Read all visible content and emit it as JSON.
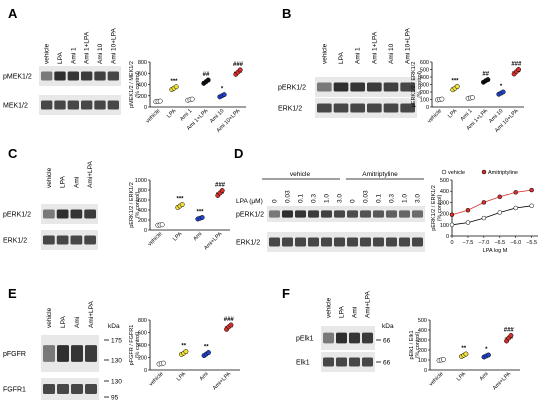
{
  "figure": {
    "panels": [
      {
        "id": "A",
        "lanes": [
          "vehicle",
          "LPA",
          "Ami 1",
          "Ami 1+LPA",
          "Ami 10",
          "Ami 10+LPA"
        ],
        "blots": [
          {
            "label": "pMEK1/2"
          },
          {
            "label": "MEK1/2"
          }
        ],
        "kda": []
      },
      {
        "id": "B",
        "lanes": [
          "vehicle",
          "LPA",
          "Ami 1",
          "Ami 1+LPA",
          "Ami 10",
          "Ami 10+LPA"
        ],
        "blots": [
          {
            "label": "pERK1/2"
          },
          {
            "label": "ERK1/2"
          }
        ],
        "kda": []
      },
      {
        "id": "C",
        "lanes": [
          "vehicle",
          "LPA",
          "Ami",
          "Ami+LPA"
        ],
        "blots": [
          {
            "label": "pERK1/2"
          },
          {
            "label": "ERK1/2"
          }
        ],
        "kda": []
      },
      {
        "id": "D",
        "groups": [
          "vehicle",
          "Amitriptyline"
        ],
        "lpa_label": "LPA (μM)",
        "concentrations": [
          "0",
          "0.03",
          "0.1",
          "0.3",
          "1.0",
          "3.0",
          "0",
          "0.03",
          "0.1",
          "0.3",
          "1.0",
          "3.0"
        ],
        "blots": [
          {
            "label": "pERK1/2"
          },
          {
            "label": "ERK1/2"
          }
        ],
        "kda": []
      },
      {
        "id": "E",
        "lanes": [
          "vehicle",
          "LPA",
          "Ami",
          "Ami+LPA"
        ],
        "blots": [
          {
            "label": "pFGFR"
          },
          {
            "label": "FGFR1"
          }
        ],
        "kda_title": "kDa",
        "kda": [
          "175",
          "130",
          "130",
          "95"
        ]
      },
      {
        "id": "F",
        "lanes": [
          "vehicle",
          "LPA",
          "Ami",
          "Ami+LPA"
        ],
        "blots": [
          {
            "label": "pElk1"
          },
          {
            "label": "Elk1"
          }
        ],
        "kda_title": "kDa",
        "kda": [
          "66",
          "66"
        ]
      }
    ]
  },
  "chart_data": [
    {
      "panel": "A",
      "type": "scatter",
      "ylabel": "pMEK1/2 / MEK1/2\n(% control)",
      "ylim": [
        0,
        800
      ],
      "yticks": [
        0,
        200,
        400,
        600,
        800
      ],
      "categories": [
        "vehicle",
        "LPA",
        "Ami 1",
        "Ami 1+LPA",
        "Ami 10",
        "Ami 10+LPA"
      ],
      "groups": [
        {
          "label": "vehicle",
          "color": "#ffffff",
          "values": [
            95,
            100,
            105
          ],
          "mean": 100,
          "sig": ""
        },
        {
          "label": "LPA",
          "color": "#f2e23c",
          "values": [
            310,
            335,
            360
          ],
          "mean": 335,
          "sig": "***"
        },
        {
          "label": "Ami 1",
          "color": "#ffffff",
          "values": [
            120,
            130,
            140
          ],
          "mean": 130,
          "sig": ""
        },
        {
          "label": "Ami 1+LPA",
          "color": "#111111",
          "values": [
            420,
            450,
            480
          ],
          "mean": 450,
          "sig": "##"
        },
        {
          "label": "Ami 10",
          "color": "#2145c9",
          "values": [
            180,
            200,
            220
          ],
          "mean": 200,
          "sig": "*"
        },
        {
          "label": "Ami 10+LPA",
          "color": "#d7302a",
          "values": [
            580,
            620,
            660
          ],
          "mean": 620,
          "sig": "###"
        }
      ]
    },
    {
      "panel": "B",
      "type": "scatter",
      "ylabel": "pERK1/2 / ERK1/2\n(% control)",
      "ylim": [
        0,
        600
      ],
      "yticks": [
        0,
        100,
        200,
        300,
        400,
        500,
        600
      ],
      "categories": [
        "vehicle",
        "LPA",
        "Ami 1",
        "Ami 1+LPA",
        "Ami 10",
        "Ami 10+LPA"
      ],
      "groups": [
        {
          "label": "vehicle",
          "color": "#ffffff",
          "values": [
            95,
            100,
            105
          ],
          "mean": 100,
          "sig": ""
        },
        {
          "label": "LPA",
          "color": "#f2e23c",
          "values": [
            230,
            250,
            275
          ],
          "mean": 252,
          "sig": "***"
        },
        {
          "label": "Ami 1",
          "color": "#ffffff",
          "values": [
            115,
            120,
            125
          ],
          "mean": 120,
          "sig": ""
        },
        {
          "label": "Ami 1+LPA",
          "color": "#111111",
          "values": [
            330,
            350,
            365
          ],
          "mean": 348,
          "sig": "##"
        },
        {
          "label": "Ami 10",
          "color": "#2145c9",
          "values": [
            170,
            185,
            200
          ],
          "mean": 185,
          "sig": "*"
        },
        {
          "label": "Ami 10+LPA",
          "color": "#d7302a",
          "values": [
            440,
            470,
            500
          ],
          "mean": 470,
          "sig": "###"
        }
      ]
    },
    {
      "panel": "C",
      "type": "scatter",
      "ylabel": "pERK1/2 / ERK1/2\n(% control)",
      "ylim": [
        0,
        1000
      ],
      "yticks": [
        0,
        200,
        400,
        600,
        800,
        1000
      ],
      "categories": [
        "vehicle",
        "LPA",
        "Ami",
        "Ami+LPA"
      ],
      "groups": [
        {
          "label": "vehicle",
          "color": "#ffffff",
          "values": [
            95,
            100,
            105
          ],
          "mean": 100,
          "sig": ""
        },
        {
          "label": "LPA",
          "color": "#f2e23c",
          "values": [
            450,
            480,
            510
          ],
          "mean": 480,
          "sig": "***"
        },
        {
          "label": "Ami",
          "color": "#2145c9",
          "values": [
            220,
            235,
            250
          ],
          "mean": 235,
          "sig": "***"
        },
        {
          "label": "Ami+LPA",
          "color": "#d7302a",
          "values": [
            690,
            740,
            790
          ],
          "mean": 740,
          "sig": "###"
        }
      ]
    },
    {
      "panel": "D",
      "type": "line",
      "xlabel": "LPA log M",
      "ylabel": "pERK1/2 / ERK1/2\n(% control)",
      "ylim": [
        0,
        500
      ],
      "yticks": [
        0,
        100,
        200,
        300,
        400,
        500
      ],
      "xlim": [
        -8,
        -5.3
      ],
      "xticks": [
        "0",
        "−7.5",
        "−7.0",
        "−6.5",
        "−6.0",
        "−5.5"
      ],
      "series": [
        {
          "name": "vehicle",
          "color": "#ffffff",
          "x": [
            -8.0,
            -7.5,
            -7.0,
            -6.5,
            -6.0,
            -5.5
          ],
          "y": [
            100,
            120,
            160,
            210,
            250,
            270
          ]
        },
        {
          "name": "Amitriptyline",
          "color": "#d7302a",
          "x": [
            -8.0,
            -7.5,
            -7.0,
            -6.5,
            -6.0,
            -5.5
          ],
          "y": [
            190,
            230,
            300,
            350,
            390,
            410
          ]
        }
      ]
    },
    {
      "panel": "E",
      "type": "scatter",
      "ylabel": "pFGFR / FGFR1\n(% control)",
      "ylim": [
        0,
        800
      ],
      "yticks": [
        0,
        200,
        400,
        600,
        800
      ],
      "categories": [
        "vehicle",
        "LPA",
        "Ami",
        "Ami+LPA"
      ],
      "groups": [
        {
          "label": "vehicle",
          "color": "#ffffff",
          "values": [
            95,
            100,
            110
          ],
          "mean": 100,
          "sig": ""
        },
        {
          "label": "LPA",
          "color": "#f2e23c",
          "values": [
            250,
            270,
            295
          ],
          "mean": 270,
          "sig": "**"
        },
        {
          "label": "Ami",
          "color": "#2145c9",
          "values": [
            230,
            255,
            280
          ],
          "mean": 255,
          "sig": "**"
        },
        {
          "label": "Ami+LPA",
          "color": "#d7302a",
          "values": [
            650,
            690,
            720
          ],
          "mean": 690,
          "sig": "###"
        }
      ]
    },
    {
      "panel": "F",
      "type": "scatter",
      "ylabel": "pElk1 / Elk1\n(% control)",
      "ylim": [
        0,
        500
      ],
      "yticks": [
        0,
        100,
        200,
        300,
        400,
        500
      ],
      "categories": [
        "vehicle",
        "LPA",
        "Ami",
        "Ami+LPA"
      ],
      "groups": [
        {
          "label": "vehicle",
          "color": "#ffffff",
          "values": [
            95,
            100,
            105
          ],
          "mean": 100,
          "sig": ""
        },
        {
          "label": "LPA",
          "color": "#f2e23c",
          "values": [
            135,
            148,
            160
          ],
          "mean": 148,
          "sig": "**"
        },
        {
          "label": "Ami",
          "color": "#2145c9",
          "values": [
            130,
            140,
            150
          ],
          "mean": 140,
          "sig": "*"
        },
        {
          "label": "Ami+LPA",
          "color": "#d7302a",
          "values": [
            290,
            320,
            345
          ],
          "mean": 320,
          "sig": "###"
        }
      ]
    }
  ]
}
